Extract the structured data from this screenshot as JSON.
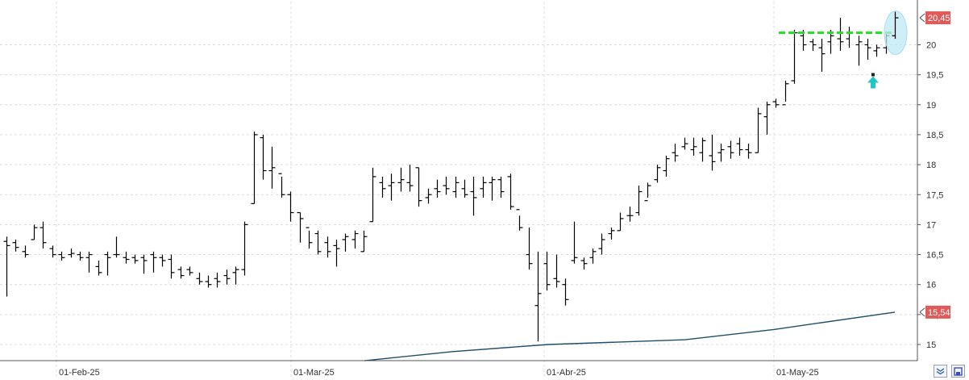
{
  "chart_data": {
    "type": "ohlc",
    "ylim": [
      14.65,
      20.75
    ],
    "y_ticks": [
      "15",
      "15,5",
      "16",
      "16,5",
      "17",
      "17,5",
      "18",
      "18,5",
      "19",
      "19,5",
      "20"
    ],
    "y_tick_values": [
      15,
      15.5,
      16,
      16.5,
      17,
      17.5,
      18,
      18.5,
      19,
      19.5,
      20
    ],
    "x_labels": [
      "01-Feb-25",
      "01-Mar-25",
      "01-Abr-25",
      "01-May-25"
    ],
    "x_label_index": [
      20,
      40,
      62,
      82
    ],
    "last_price": {
      "label": "20,45",
      "value": 20.45,
      "color": "#e05a5a"
    },
    "moving_average": {
      "label": "15,54",
      "value": 15.54,
      "color": "#1f4e6b",
      "points": [
        [
          31,
          14.75
        ],
        [
          48,
          15.0
        ],
        [
          58,
          15.05
        ],
        [
          82,
          15.25
        ],
        [
          93,
          15.54
        ]
      ]
    },
    "resistance": {
      "value": 20.2,
      "start": 80,
      "end": 92,
      "color": "#22dd22"
    },
    "highlight_index": 93,
    "signal_arrow": {
      "index": 90,
      "value": 19.3,
      "color": "#1ec6c6"
    },
    "bars": [
      [
        16.72,
        16.8,
        15.8,
        16.65
      ],
      [
        16.7,
        16.75,
        16.55,
        16.62
      ],
      [
        16.55,
        16.65,
        16.45,
        16.5
      ],
      [
        16.75,
        17.0,
        16.75,
        16.95
      ],
      [
        16.95,
        17.05,
        16.6,
        16.7
      ],
      [
        16.6,
        16.65,
        16.45,
        16.5
      ],
      [
        16.5,
        16.55,
        16.4,
        16.45
      ],
      [
        16.5,
        16.6,
        16.45,
        16.52
      ],
      [
        16.5,
        16.55,
        16.4,
        16.45
      ],
      [
        16.45,
        16.55,
        16.2,
        16.5
      ],
      [
        16.3,
        16.4,
        16.15,
        16.2
      ],
      [
        16.5,
        16.55,
        16.15,
        16.45
      ],
      [
        16.5,
        16.8,
        16.45,
        16.5
      ],
      [
        16.45,
        16.55,
        16.35,
        16.42
      ],
      [
        16.45,
        16.5,
        16.35,
        16.4
      ],
      [
        16.45,
        16.5,
        16.18,
        16.4
      ],
      [
        16.5,
        16.55,
        16.2,
        16.45
      ],
      [
        16.45,
        16.5,
        16.3,
        16.4
      ],
      [
        16.42,
        16.5,
        16.1,
        16.2
      ],
      [
        16.25,
        16.3,
        16.1,
        16.15
      ],
      [
        16.25,
        16.3,
        16.15,
        16.2
      ],
      [
        16.1,
        16.2,
        16.0,
        16.05
      ],
      [
        16.05,
        16.15,
        15.95,
        16.0
      ],
      [
        16.1,
        16.2,
        15.95,
        16.05
      ],
      [
        16.15,
        16.25,
        16.0,
        16.1
      ],
      [
        16.2,
        16.3,
        16.0,
        16.25
      ],
      [
        16.25,
        17.05,
        16.15,
        17.0
      ],
      [
        17.35,
        18.55,
        17.35,
        18.5
      ],
      [
        18.45,
        18.5,
        17.75,
        17.9
      ],
      [
        17.9,
        18.3,
        17.6,
        17.95
      ],
      [
        17.85,
        17.8,
        17.45,
        17.5
      ],
      [
        17.5,
        17.55,
        17.05,
        17.2
      ],
      [
        17.2,
        17.2,
        16.7,
        17.1
      ],
      [
        16.95,
        16.9,
        16.6,
        16.7
      ],
      [
        16.85,
        16.9,
        16.5,
        16.55
      ],
      [
        16.7,
        16.8,
        16.45,
        16.55
      ],
      [
        16.65,
        16.75,
        16.3,
        16.6
      ],
      [
        16.75,
        16.85,
        16.55,
        16.8
      ],
      [
        16.75,
        16.9,
        16.6,
        16.85
      ],
      [
        16.55,
        16.9,
        16.55,
        16.8
      ],
      [
        17.05,
        17.95,
        17.05,
        17.8
      ],
      [
        17.7,
        17.8,
        17.45,
        17.6
      ],
      [
        17.65,
        17.85,
        17.4,
        17.7
      ],
      [
        17.7,
        17.95,
        17.55,
        17.75
      ],
      [
        17.7,
        18.0,
        17.55,
        17.65
      ],
      [
        17.95,
        17.95,
        17.3,
        17.4
      ],
      [
        17.45,
        17.6,
        17.35,
        17.5
      ],
      [
        17.6,
        17.75,
        17.45,
        17.55
      ],
      [
        17.65,
        17.8,
        17.5,
        17.6
      ],
      [
        17.55,
        17.8,
        17.45,
        17.7
      ],
      [
        17.6,
        17.75,
        17.45,
        17.5
      ],
      [
        17.55,
        17.8,
        17.15,
        17.45
      ],
      [
        17.6,
        17.8,
        17.45,
        17.7
      ],
      [
        17.7,
        17.8,
        17.4,
        17.75
      ],
      [
        17.75,
        17.8,
        17.45,
        17.55
      ],
      [
        17.8,
        17.85,
        17.25,
        17.3
      ],
      [
        17.25,
        17.15,
        16.9,
        16.95
      ],
      [
        16.5,
        16.95,
        16.25,
        16.35
      ],
      [
        15.65,
        16.55,
        15.05,
        15.85
      ],
      [
        16.35,
        16.55,
        15.9,
        16.0
      ],
      [
        16.1,
        16.5,
        15.95,
        16.05
      ],
      [
        16.0,
        16.1,
        15.65,
        15.75
      ],
      [
        16.4,
        17.05,
        16.35,
        16.45
      ],
      [
        16.4,
        16.45,
        16.25,
        16.35
      ],
      [
        16.45,
        16.6,
        16.35,
        16.55
      ],
      [
        16.6,
        16.85,
        16.5,
        16.75
      ],
      [
        16.85,
        16.95,
        16.75,
        16.9
      ],
      [
        16.9,
        17.2,
        16.9,
        17.1
      ],
      [
        17.15,
        17.3,
        17.05,
        17.15
      ],
      [
        17.2,
        17.65,
        17.15,
        17.55
      ],
      [
        17.4,
        17.7,
        17.45,
        17.65
      ],
      [
        17.75,
        18.0,
        17.7,
        17.95
      ],
      [
        17.9,
        18.15,
        17.8,
        18.1
      ],
      [
        18.2,
        18.35,
        18.05,
        18.15
      ],
      [
        18.3,
        18.45,
        18.25,
        18.35
      ],
      [
        18.25,
        18.45,
        18.15,
        18.3
      ],
      [
        18.2,
        18.45,
        18.05,
        18.4
      ],
      [
        18.15,
        18.5,
        17.9,
        18.05
      ],
      [
        18.2,
        18.35,
        18.05,
        18.25
      ],
      [
        18.3,
        18.4,
        18.1,
        18.2
      ],
      [
        18.35,
        18.45,
        18.15,
        18.25
      ],
      [
        18.25,
        18.35,
        18.1,
        18.2
      ],
      [
        18.2,
        18.95,
        18.2,
        18.85
      ],
      [
        18.8,
        19.05,
        18.5,
        19.0
      ],
      [
        19.05,
        19.1,
        18.95,
        19.0
      ],
      [
        19.0,
        19.4,
        19.05,
        19.35
      ],
      [
        19.4,
        20.25,
        19.35,
        20.2
      ],
      [
        20.15,
        20.25,
        19.9,
        20.0
      ],
      [
        20.05,
        20.1,
        19.9,
        20.0
      ],
      [
        19.95,
        20.1,
        19.55,
        19.85
      ],
      [
        20.05,
        20.25,
        19.85,
        20.15
      ],
      [
        20.1,
        20.45,
        19.9,
        20.05
      ],
      [
        20.1,
        20.3,
        19.95,
        20.2
      ],
      [
        20.0,
        20.15,
        19.65,
        20.05
      ],
      [
        20.0,
        20.1,
        19.75,
        19.95
      ],
      [
        19.9,
        20.0,
        19.8,
        19.95
      ],
      [
        19.95,
        20.2,
        19.85,
        20.15
      ],
      [
        20.15,
        20.55,
        20.1,
        20.45
      ]
    ]
  },
  "ui": {
    "collapse_icon_color": "#3b6ea8",
    "save_icon_color": "#3b4cc0"
  }
}
